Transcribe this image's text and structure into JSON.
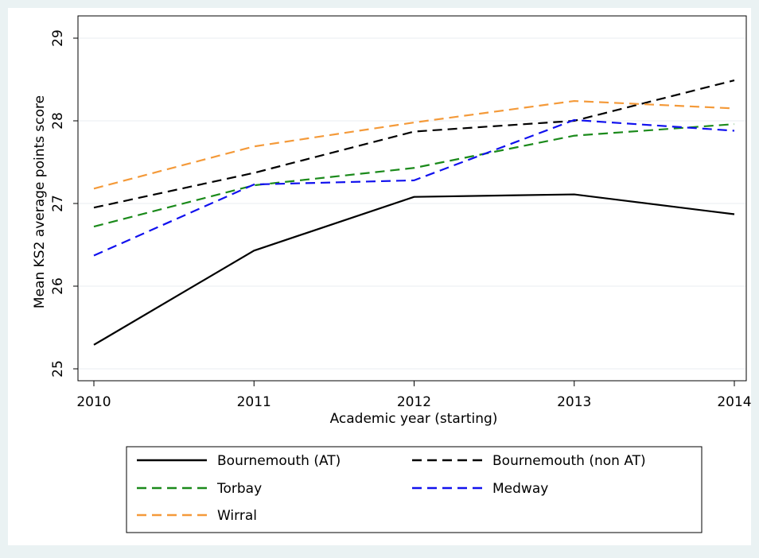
{
  "chart_data": {
    "type": "line",
    "title": "",
    "xlabel": "Academic year (starting)",
    "ylabel": "Mean KS2 average points score",
    "x": [
      2010,
      2011,
      2012,
      2013,
      2014
    ],
    "xlim": [
      2010,
      2014
    ],
    "ylim": [
      25,
      29
    ],
    "xticks": [
      "2010",
      "2011",
      "2012",
      "2013",
      "2014"
    ],
    "yticks": [
      "25",
      "26",
      "27",
      "28",
      "29"
    ],
    "grid": "horizontal",
    "legend_position": "bottom",
    "series": [
      {
        "name": "Bournemouth (AT)",
        "values": [
          25.29,
          26.43,
          27.08,
          27.11,
          26.87
        ],
        "color": "#000000",
        "style": "solid"
      },
      {
        "name": "Bournemouth (non AT)",
        "values": [
          26.95,
          27.37,
          27.87,
          28.0,
          28.49
        ],
        "color": "#000000",
        "style": "dashed"
      },
      {
        "name": "Torbay",
        "values": [
          26.72,
          27.22,
          27.43,
          27.82,
          27.96
        ],
        "color": "#1b8a1b",
        "style": "dashed"
      },
      {
        "name": "Medway",
        "values": [
          26.37,
          27.23,
          27.28,
          28.01,
          27.88
        ],
        "color": "#1111ee",
        "style": "dashed"
      },
      {
        "name": "Wirral",
        "values": [
          27.18,
          27.69,
          27.98,
          28.24,
          28.15
        ],
        "color": "#f49a3a",
        "style": "dashed"
      }
    ]
  }
}
